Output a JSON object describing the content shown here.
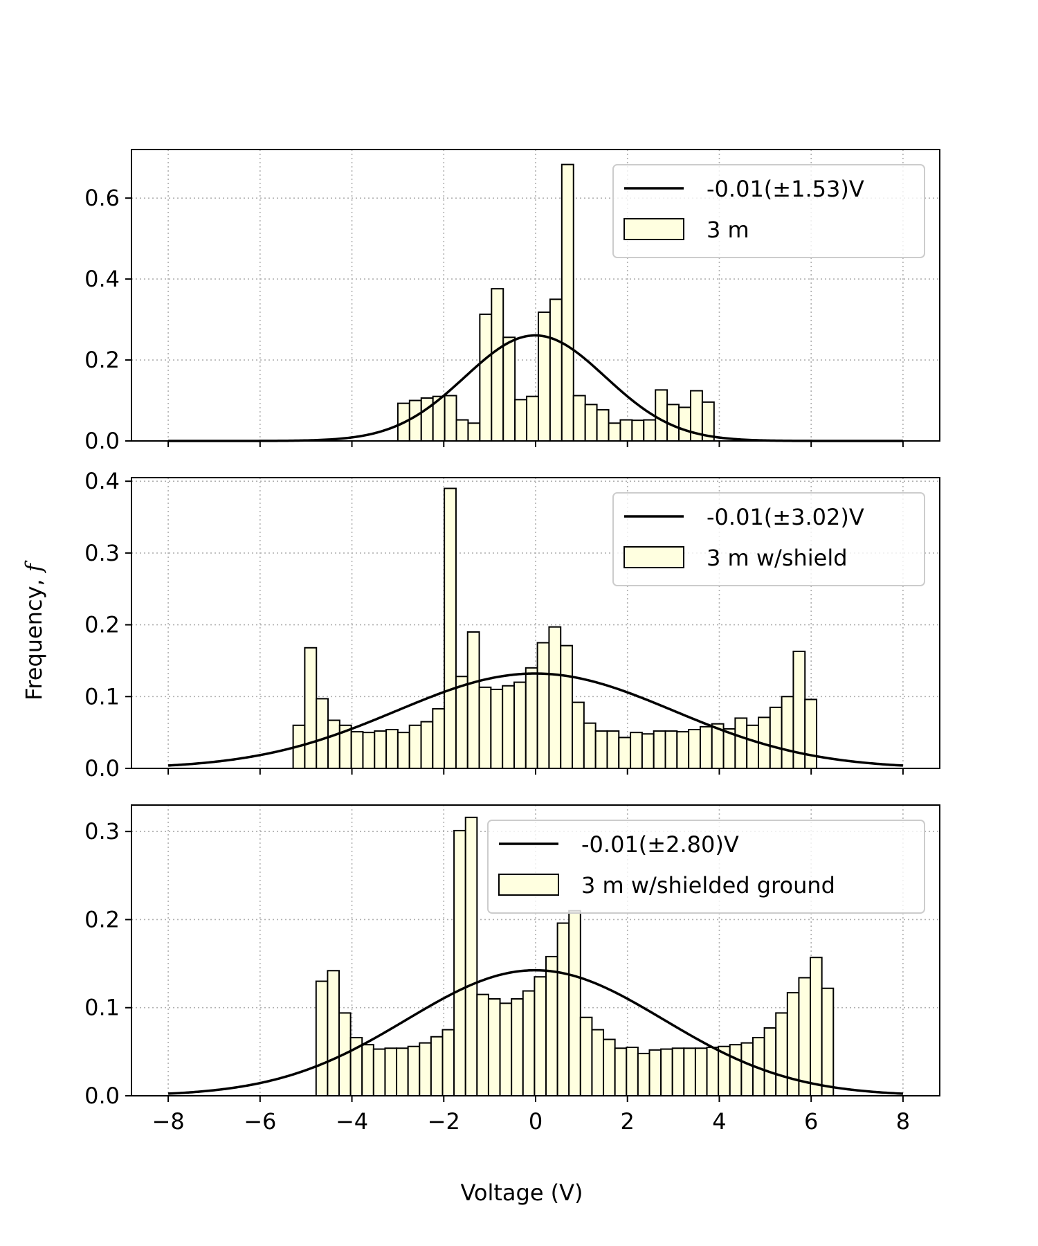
{
  "figure": {
    "xlabel": "Voltage (V)",
    "ylabel_text": "Frequency, ",
    "ylabel_var": "f",
    "bar_fill": "#ffffe0",
    "bar_edge": "#000000",
    "line_color": "#000000",
    "grid_color": "#b0b0b0"
  },
  "chart_data": [
    {
      "type": "bar",
      "subtype": "histogram with gaussian fit",
      "xlim": [
        -8.8,
        8.8
      ],
      "ylim": [
        0,
        0.72
      ],
      "xticks": [
        -8,
        -6,
        -4,
        -2,
        0,
        2,
        4,
        6,
        8
      ],
      "xtick_labels": [
        "−8",
        "−6",
        "−4",
        "−2",
        "0",
        "2",
        "4",
        "6",
        "8"
      ],
      "yticks": [
        0.0,
        0.2,
        0.4,
        0.6
      ],
      "ytick_labels": [
        "0.0",
        "0.2",
        "0.4",
        "0.6"
      ],
      "grid": true,
      "show_xtick_labels": false,
      "legend_position": "top-right",
      "series": [
        {
          "name": "-0.01(±1.53)V",
          "kind": "line",
          "mean": -0.01,
          "std": 1.53
        },
        {
          "name": "3 m",
          "kind": "histogram",
          "bin_start": -3.0,
          "bin_width": 0.255,
          "values": [
            0.093,
            0.1,
            0.106,
            0.11,
            0.112,
            0.052,
            0.044,
            0.313,
            0.376,
            0.256,
            0.102,
            0.11,
            0.318,
            0.35,
            0.683,
            0.112,
            0.09,
            0.077,
            0.044,
            0.052,
            0.051,
            0.052,
            0.126,
            0.09,
            0.083,
            0.124,
            0.096
          ]
        }
      ]
    },
    {
      "type": "bar",
      "subtype": "histogram with gaussian fit",
      "xlim": [
        -8.8,
        8.8
      ],
      "ylim": [
        0,
        0.405
      ],
      "xticks": [
        -8,
        -6,
        -4,
        -2,
        0,
        2,
        4,
        6,
        8
      ],
      "xtick_labels": [
        "−8",
        "−6",
        "−4",
        "−2",
        "0",
        "2",
        "4",
        "6",
        "8"
      ],
      "yticks": [
        0.0,
        0.1,
        0.2,
        0.3,
        0.4
      ],
      "ytick_labels": [
        "0.0",
        "0.1",
        "0.2",
        "0.3",
        "0.4"
      ],
      "grid": true,
      "show_xtick_labels": false,
      "legend_position": "top-right",
      "series": [
        {
          "name": "-0.01(±3.02)V",
          "kind": "line",
          "mean": -0.01,
          "std": 3.02
        },
        {
          "name": "3 m w/shield",
          "kind": "histogram",
          "bin_start": -5.28,
          "bin_width": 0.2533,
          "values": [
            0.06,
            0.168,
            0.097,
            0.067,
            0.06,
            0.051,
            0.05,
            0.052,
            0.054,
            0.05,
            0.06,
            0.065,
            0.083,
            0.39,
            0.128,
            0.19,
            0.113,
            0.11,
            0.115,
            0.12,
            0.14,
            0.175,
            0.197,
            0.171,
            0.092,
            0.063,
            0.052,
            0.052,
            0.043,
            0.05,
            0.048,
            0.052,
            0.052,
            0.051,
            0.054,
            0.058,
            0.062,
            0.055,
            0.07,
            0.06,
            0.071,
            0.085,
            0.1,
            0.163,
            0.096
          ]
        }
      ]
    },
    {
      "type": "bar",
      "subtype": "histogram with gaussian fit",
      "xlim": [
        -8.8,
        8.8
      ],
      "ylim": [
        0,
        0.33
      ],
      "xticks": [
        -8,
        -6,
        -4,
        -2,
        0,
        2,
        4,
        6,
        8
      ],
      "xtick_labels": [
        "−8",
        "−6",
        "−4",
        "−2",
        "0",
        "2",
        "4",
        "6",
        "8"
      ],
      "yticks": [
        0.0,
        0.1,
        0.2,
        0.3
      ],
      "ytick_labels": [
        "0.0",
        "0.1",
        "0.2",
        "0.3"
      ],
      "grid": true,
      "show_xtick_labels": true,
      "legend_position": "top-right",
      "series": [
        {
          "name": "-0.01(±2.80)V",
          "kind": "line",
          "mean": -0.01,
          "std": 2.8
        },
        {
          "name": "3 m w/shielded ground",
          "kind": "histogram",
          "bin_start": -4.78,
          "bin_width": 0.2503,
          "values": [
            0.13,
            0.142,
            0.094,
            0.066,
            0.058,
            0.053,
            0.054,
            0.054,
            0.056,
            0.06,
            0.067,
            0.075,
            0.301,
            0.316,
            0.115,
            0.11,
            0.105,
            0.11,
            0.119,
            0.135,
            0.158,
            0.196,
            0.21,
            0.089,
            0.075,
            0.064,
            0.054,
            0.055,
            0.048,
            0.052,
            0.053,
            0.054,
            0.054,
            0.054,
            0.055,
            0.056,
            0.058,
            0.06,
            0.066,
            0.077,
            0.094,
            0.117,
            0.134,
            0.157,
            0.122
          ]
        }
      ]
    }
  ]
}
